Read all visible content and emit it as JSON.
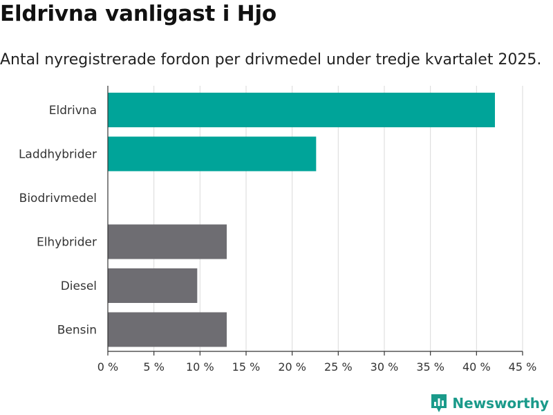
{
  "header": {
    "title": "Eldrivna vanligast i Hjo",
    "subtitle": "Antal nyregistrerade fordon per drivmedel under tredje kvartalet 2025."
  },
  "brand": {
    "name": "Newsworthy",
    "logo_icon": "newsworthy-logo-icon",
    "color": "#1a9a8a"
  },
  "colors": {
    "highlight": "#00a499",
    "other": "#6e6d72",
    "grid": "#d9d9d9",
    "axis": "#333333"
  },
  "chart_data": {
    "type": "bar",
    "orientation": "horizontal",
    "title": "Eldrivna vanligast i Hjo",
    "subtitle": "Antal nyregistrerade fordon per drivmedel under tredje kvartalet 2025.",
    "categories": [
      "Eldrivna",
      "Laddhybrider",
      "Biodrivmedel",
      "Elhybrider",
      "Diesel",
      "Bensin"
    ],
    "values": [
      42,
      22.6,
      0,
      12.9,
      9.7,
      12.9
    ],
    "highlight": [
      true,
      true,
      false,
      false,
      false,
      false
    ],
    "xlim": [
      0,
      45
    ],
    "xticks": [
      0,
      5,
      10,
      15,
      20,
      25,
      30,
      35,
      40,
      45
    ],
    "tick_labels": [
      "0 %",
      "5 %",
      "10 %",
      "15 %",
      "20 %",
      "25 %",
      "30 %",
      "35 %",
      "40 %",
      "45 %"
    ],
    "xlabel": "",
    "ylabel": "",
    "grid": true
  }
}
